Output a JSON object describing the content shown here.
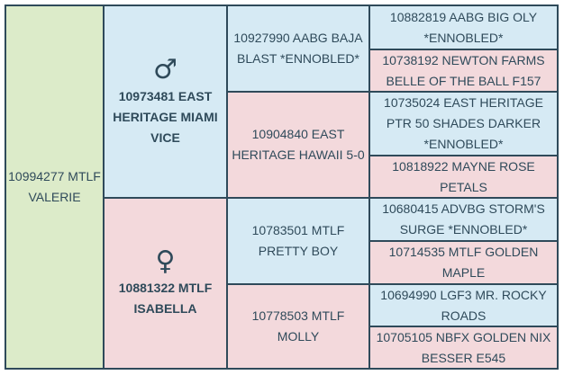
{
  "subject": {
    "name": "10994277 MTLF VALERIE"
  },
  "sire": {
    "symbol": "♂",
    "name": "10973481 EAST HERITAGE MIAMI VICE"
  },
  "dam": {
    "symbol": "♀",
    "name": "10881322 MTLF ISABELLA"
  },
  "grandparents": {
    "sire_sire": "10927990 AABG BAJA BLAST *ENNOBLED*",
    "sire_dam": "10904840 EAST HERITAGE HAWAII 5-0",
    "dam_sire": "10783501 MTLF PRETTY BOY",
    "dam_dam": "10778503 MTLF MOLLY"
  },
  "great_grandparents": [
    "10882819 AABG BIG OLY *ENNOBLED*",
    "10738192 NEWTON FARMS BELLE OF THE BALL F157",
    "10735024 EAST HERITAGE PTR 50 SHADES DARKER *ENNOBLED*",
    "10818922 MAYNE ROSE PETALS",
    "10680415 ADVBG STORM'S SURGE *ENNOBLED*",
    "10714535 MTLF GOLDEN MAPLE",
    "10694990 LGF3 MR. ROCKY ROADS",
    "10705105 NBFX GOLDEN NIX BESSER E545"
  ],
  "colors": {
    "subject_bg": "#dcebc9",
    "male_bg": "#d6eaf4",
    "female_bg": "#f3d9dc",
    "border": "#2f4a5a",
    "text": "#2f4a5a"
  }
}
